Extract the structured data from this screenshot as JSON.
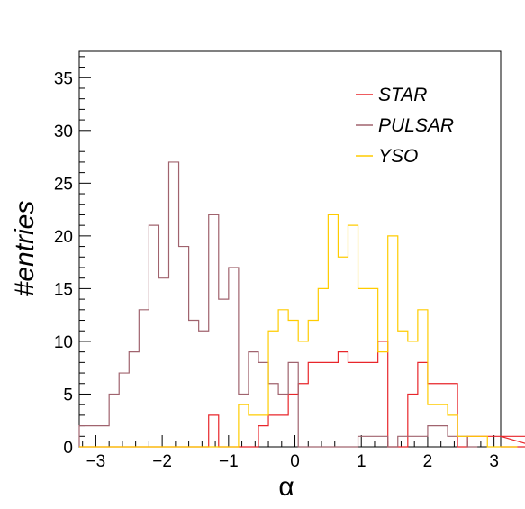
{
  "chart_data": {
    "type": "histogram",
    "xlabel": "α",
    "ylabel": "#entries",
    "xlim": [
      -3.25,
      3.1
    ],
    "ylim": [
      0,
      37.5
    ],
    "x_ticks": [
      -3,
      -2,
      -1,
      0,
      1,
      2,
      3
    ],
    "x_tick_labels": [
      "−3",
      "−2",
      "−1",
      "0",
      "1",
      "2",
      "3"
    ],
    "y_ticks": [
      0,
      5,
      10,
      15,
      20,
      25,
      30,
      35
    ],
    "y_tick_labels": [
      "0",
      "5",
      "10",
      "15",
      "20",
      "25",
      "30",
      "35"
    ],
    "bin_width": 0.15,
    "bin_edges_start": -3.25,
    "grid": false,
    "legend_position": "top-right",
    "series": [
      {
        "name": "STAR",
        "color": "#e8262b",
        "values": [
          0,
          0,
          0,
          0,
          0,
          0,
          0,
          0,
          0,
          0,
          0,
          0,
          0,
          3,
          0,
          0,
          0,
          0,
          2,
          3,
          3,
          5,
          6,
          8,
          8,
          8,
          9,
          8,
          8,
          8,
          10,
          0,
          0,
          5,
          8,
          6,
          6,
          6,
          0,
          1,
          1,
          1,
          1,
          1,
          1,
          1,
          0
        ]
      },
      {
        "name": "PULSAR",
        "color": "#a0636e",
        "values": [
          2,
          2,
          2,
          5,
          7,
          9,
          13,
          21,
          16,
          27,
          19,
          12,
          11,
          22,
          14,
          17,
          5,
          9,
          8,
          6,
          5,
          8,
          0,
          0,
          0,
          0,
          0,
          0,
          1,
          1,
          1,
          0,
          1,
          1,
          1,
          2,
          2,
          1,
          1,
          0
        ]
      },
      {
        "name": "YSO",
        "color": "#ffcc00",
        "values": [
          0,
          0,
          0,
          0,
          0,
          0,
          0,
          0,
          0,
          0,
          0,
          0,
          0,
          0,
          0,
          0,
          4,
          3,
          3,
          11,
          13,
          12,
          10,
          12,
          15,
          22,
          18,
          21,
          15,
          15,
          9,
          20,
          11,
          10,
          13,
          4,
          4,
          3,
          1,
          1,
          1,
          0,
          0,
          0,
          0
        ]
      }
    ]
  }
}
